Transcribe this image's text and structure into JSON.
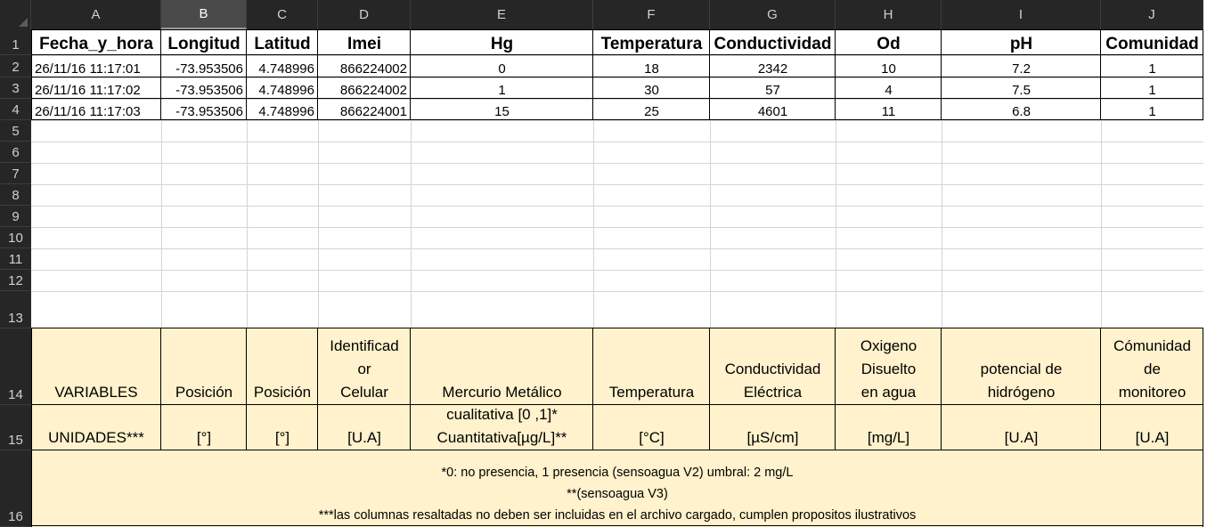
{
  "columns": [
    "A",
    "B",
    "C",
    "D",
    "E",
    "F",
    "G",
    "H",
    "I",
    "J"
  ],
  "selected_column": "B",
  "row_numbers": [
    "1",
    "2",
    "3",
    "4",
    "5",
    "6",
    "7",
    "8",
    "9",
    "10",
    "11",
    "12",
    "13",
    "14",
    "15",
    "16"
  ],
  "headers": [
    "Fecha_y_hora",
    "Longitud",
    "Latitud",
    "Imei",
    "Hg",
    "Temperatura",
    "Conductividad",
    "Od",
    "pH",
    "Comunidad"
  ],
  "data_rows": [
    [
      "26/11/16 11:17:01",
      "-73.953506",
      "4.748996",
      "866224002",
      "0",
      "18",
      "2342",
      "10",
      "7.2",
      "1"
    ],
    [
      "26/11/16 11:17:02",
      "-73.953506",
      "4.748996",
      "866224002",
      "1",
      "30",
      "57",
      "4",
      "7.5",
      "1"
    ],
    [
      "26/11/16 11:17:03",
      "-73.953506",
      "4.748996",
      "866224001",
      "15",
      "25",
      "4601",
      "11",
      "6.8",
      "1"
    ]
  ],
  "variables_row": [
    [
      "VARIABLES"
    ],
    [
      "Posición"
    ],
    [
      "Posición"
    ],
    [
      "Identificad",
      "or",
      "Celular"
    ],
    [
      "Mercurio Metálico"
    ],
    [
      "Temperatura"
    ],
    [
      "Conductividad",
      "Eléctrica"
    ],
    [
      "Oxigeno",
      "Disuelto",
      "en agua"
    ],
    [
      "potencial de",
      "hidrógeno"
    ],
    [
      "Cómunidad",
      "de",
      "monitoreo"
    ]
  ],
  "units_row": [
    [
      "UNIDADES***"
    ],
    [
      "[°]"
    ],
    [
      "[°]"
    ],
    [
      "[U.A]"
    ],
    [
      "cualitativa [0 ,1]*",
      "Cuantitativa[µg/L]**"
    ],
    [
      "[°C]"
    ],
    [
      "[µS/cm]"
    ],
    [
      "[mg/L]"
    ],
    [
      "[U.A]"
    ],
    [
      "[U.A]"
    ]
  ],
  "notes": [
    "*0: no presencia, 1 presencia (sensoagua V2) umbral: 2 mg/L",
    "**(sensoagua V3)",
    "***las columnas resaltadas no deben ser incluidas en el archivo cargado, cumplen propositos ilustrativos"
  ],
  "colors": {
    "header_bg": "#262626",
    "selected_header_bg": "#4a4a4a",
    "highlight_fill": "#fff2cc"
  }
}
